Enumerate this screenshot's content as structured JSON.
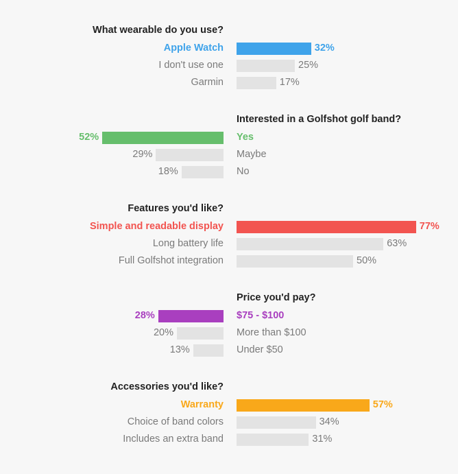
{
  "chart_data": [
    {
      "type": "bar",
      "title": "What wearable do you use?",
      "orientation": "right",
      "categories": [
        "Apple Watch",
        "I don't use one",
        "Garmin"
      ],
      "values": [
        32,
        25,
        17
      ],
      "value_labels": [
        "32%",
        "25%",
        "17%"
      ],
      "highlight_index": 0,
      "highlight_color": "#3fa3ea",
      "base_color": "#e3e3e3"
    },
    {
      "type": "bar",
      "title": "Interested in a Golfshot golf band?",
      "orientation": "left",
      "categories": [
        "Yes",
        "Maybe",
        "No"
      ],
      "values": [
        52,
        29,
        18
      ],
      "value_labels": [
        "52%",
        "29%",
        "18%"
      ],
      "highlight_index": 0,
      "highlight_color": "#66be6c",
      "base_color": "#e3e3e3"
    },
    {
      "type": "bar",
      "title": "Features you'd like?",
      "orientation": "right",
      "categories": [
        "Simple and readable display",
        "Long battery life",
        "Full Golfshot integration"
      ],
      "values": [
        77,
        63,
        50
      ],
      "value_labels": [
        "77%",
        "63%",
        "50%"
      ],
      "highlight_index": 0,
      "highlight_color": "#f25450",
      "base_color": "#e3e3e3"
    },
    {
      "type": "bar",
      "title": "Price you'd pay?",
      "orientation": "left",
      "categories": [
        "$75 - $100",
        "More than $100",
        "Under $50"
      ],
      "values": [
        28,
        20,
        13
      ],
      "value_labels": [
        "28%",
        "20%",
        "13%"
      ],
      "highlight_index": 0,
      "highlight_color": "#a93fbf",
      "base_color": "#e3e3e3"
    },
    {
      "type": "bar",
      "title": "Accessories you'd like?",
      "orientation": "right",
      "categories": [
        "Warranty",
        "Choice of band colors",
        "Includes an extra band"
      ],
      "values": [
        57,
        34,
        31
      ],
      "value_labels": [
        "57%",
        "34%",
        "31%"
      ],
      "highlight_index": 0,
      "highlight_color": "#f9a81a",
      "base_color": "#e3e3e3"
    }
  ]
}
